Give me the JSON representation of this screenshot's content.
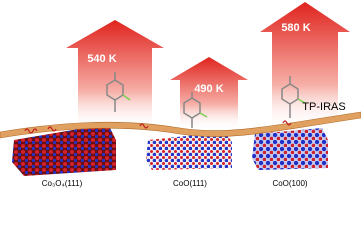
{
  "panels": [
    {
      "temperature": "540 K",
      "surface": "Co₃O₄(111)"
    },
    {
      "temperature": "490 K",
      "surface": "CoO(111)"
    },
    {
      "temperature": "580 K",
      "surface": "CoO(100)"
    }
  ],
  "band_label": "TP-IRAS"
}
